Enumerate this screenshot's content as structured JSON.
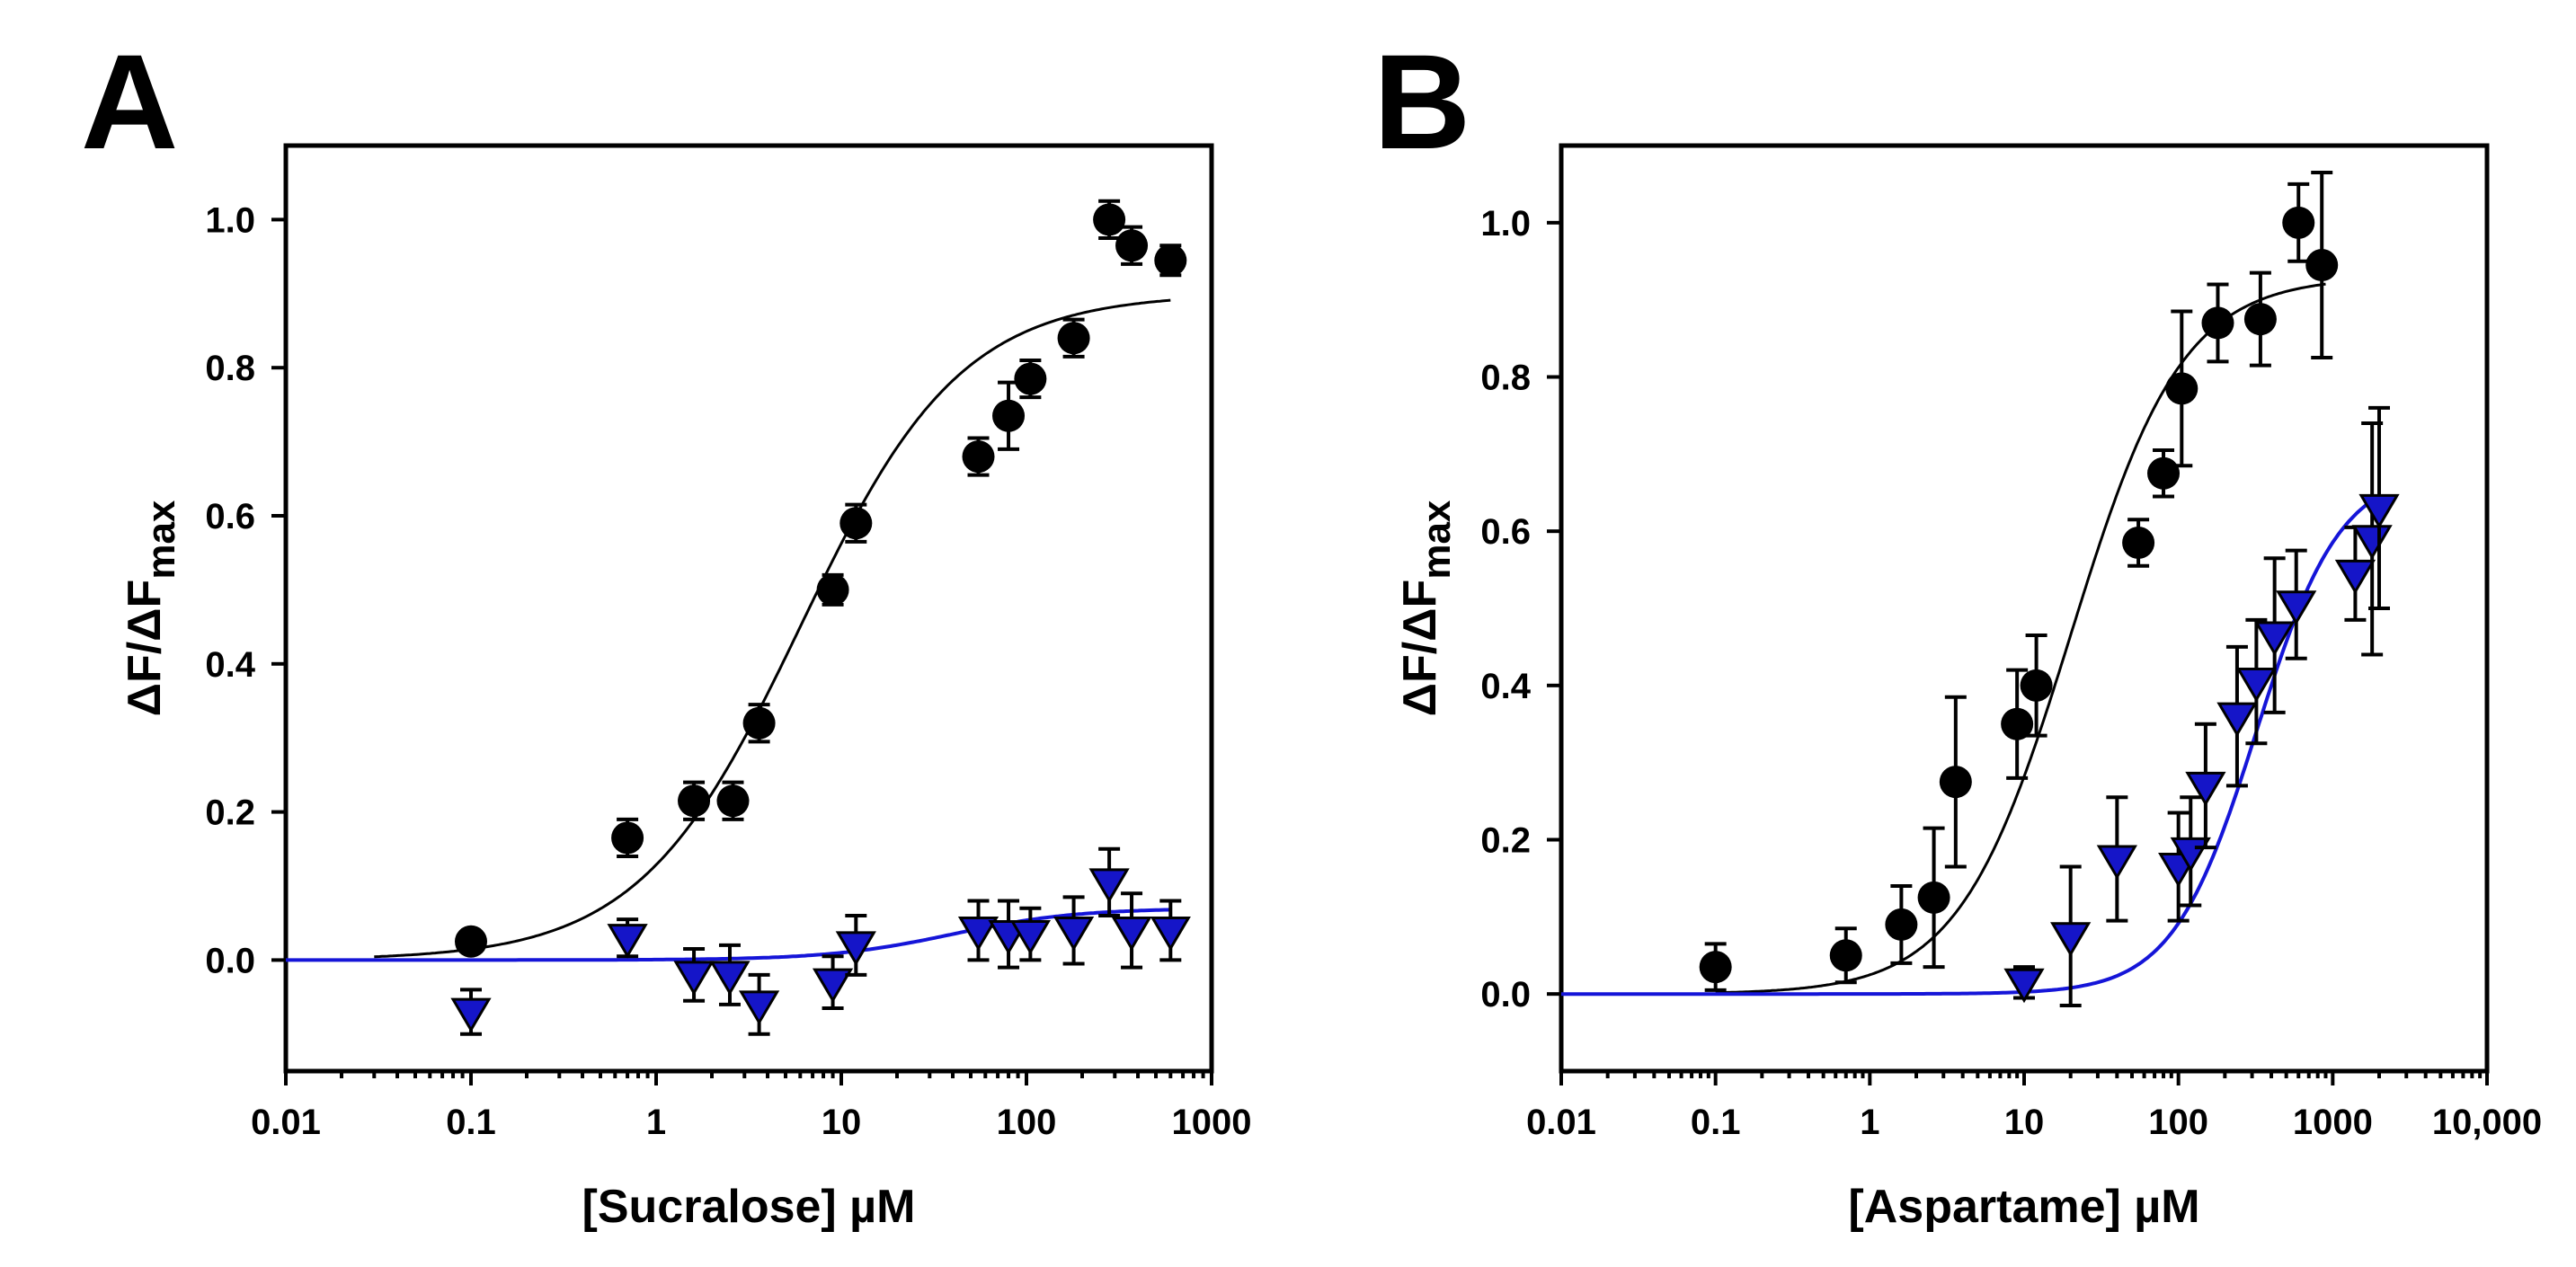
{
  "chart_data": [
    {
      "panel": "A",
      "type": "scatter",
      "title": "",
      "xlabel": "[Sucralose] µM",
      "ylabel_main": "ΔF/ΔF",
      "ylabel_sub": "max",
      "xscale": "log",
      "xlim": [
        0.01,
        1000
      ],
      "ylim": [
        -0.15,
        1.1
      ],
      "x_ticks": [
        0.01,
        0.1,
        1,
        10,
        100,
        1000
      ],
      "x_tick_labels": [
        "0.01",
        "0.1",
        "1",
        "10",
        "100",
        "1000"
      ],
      "y_ticks": [
        0,
        0.2,
        0.4,
        0.6,
        0.8,
        1.0
      ],
      "y_tick_labels": [
        "0.0",
        "0.2",
        "0.4",
        "0.6",
        "0.8",
        "1.0"
      ],
      "series": [
        {
          "name": "circles",
          "marker": "circle",
          "color": "#000000",
          "x": [
            0.1,
            0.7,
            1.6,
            2.6,
            3.6,
            9,
            12,
            55,
            80,
            105,
            180,
            280,
            370,
            600
          ],
          "y": [
            0.025,
            0.165,
            0.215,
            0.215,
            0.32,
            0.5,
            0.59,
            0.68,
            0.735,
            0.785,
            0.84,
            1.0,
            0.965,
            0.945
          ],
          "err": [
            0.01,
            0.025,
            0.025,
            0.025,
            0.025,
            0.02,
            0.025,
            0.025,
            0.045,
            0.025,
            0.025,
            0.025,
            0.025,
            0.02
          ],
          "fit": {
            "bottom": 0.0,
            "top": 0.9,
            "ec50": 6.0,
            "hill": 1.0,
            "xrange": [
              0.03,
              600
            ],
            "color": "#000000"
          }
        },
        {
          "name": "triangles",
          "marker": "triangle-down",
          "color": "#1515c8",
          "x": [
            0.1,
            0.7,
            1.6,
            2.5,
            3.6,
            9,
            12,
            55,
            80,
            105,
            180,
            280,
            370,
            600
          ],
          "y": [
            -0.07,
            0.03,
            -0.02,
            -0.02,
            -0.06,
            -0.03,
            0.02,
            0.04,
            0.035,
            0.035,
            0.04,
            0.105,
            0.04,
            0.04
          ],
          "err": [
            0.03,
            0.025,
            0.035,
            0.04,
            0.04,
            0.035,
            0.04,
            0.04,
            0.045,
            0.035,
            0.045,
            0.045,
            0.05,
            0.04
          ],
          "fit": {
            "bottom": 0.0,
            "top": 0.07,
            "ec50": 40,
            "hill": 1.3,
            "xrange": [
              0.01,
              600
            ],
            "color": "#1515d8"
          }
        }
      ]
    },
    {
      "panel": "B",
      "type": "scatter",
      "title": "",
      "xlabel": "[Aspartame] µM",
      "ylabel_main": "ΔF/ΔF",
      "ylabel_sub": "max",
      "xscale": "log",
      "xlim": [
        0.01,
        10000
      ],
      "ylim": [
        -0.1,
        1.1
      ],
      "x_ticks": [
        0.01,
        0.1,
        1,
        10,
        100,
        1000,
        10000
      ],
      "x_tick_labels": [
        "0.01",
        "0.1",
        "1",
        "10",
        "100",
        "1000",
        "10,000"
      ],
      "y_ticks": [
        0,
        0.2,
        0.4,
        0.6,
        0.8,
        1.0
      ],
      "y_tick_labels": [
        "0.0",
        "0.2",
        "0.4",
        "0.6",
        "0.8",
        "1.0"
      ],
      "series": [
        {
          "name": "circles",
          "marker": "circle",
          "color": "#000000",
          "x": [
            0.1,
            0.7,
            1.6,
            2.6,
            3.6,
            9,
            12,
            55,
            80,
            105,
            180,
            340,
            600,
            850
          ],
          "y": [
            0.035,
            0.05,
            0.09,
            0.125,
            0.275,
            0.35,
            0.4,
            0.585,
            0.675,
            0.785,
            0.87,
            0.875,
            1.0,
            0.945
          ],
          "err": [
            0.03,
            0.035,
            0.05,
            0.09,
            0.11,
            0.07,
            0.065,
            0.03,
            0.03,
            0.1,
            0.05,
            0.06,
            0.05,
            0.12
          ],
          "fit": {
            "bottom": 0.0,
            "top": 0.93,
            "ec50": 20,
            "hill": 1.2,
            "xrange": [
              0.1,
              900
            ],
            "color": "#000000"
          }
        },
        {
          "name": "triangles",
          "marker": "triangle-down",
          "color": "#1515c8",
          "x": [
            10,
            20,
            40,
            100,
            120,
            150,
            240,
            320,
            420,
            580,
            1400,
            1800,
            2000
          ],
          "y": [
            0.015,
            0.075,
            0.175,
            0.165,
            0.185,
            0.27,
            0.36,
            0.405,
            0.465,
            0.505,
            0.545,
            0.59,
            0.63
          ],
          "err": [
            0.02,
            0.09,
            0.08,
            0.07,
            0.07,
            0.08,
            0.09,
            0.08,
            0.1,
            0.07,
            0.06,
            0.15,
            0.13
          ],
          "fit": {
            "bottom": 0.0,
            "top": 0.68,
            "ec50": 320,
            "hill": 1.6,
            "xrange": [
              0.01,
              2000
            ],
            "color": "#1515d8"
          }
        }
      ]
    }
  ],
  "panels": [
    {
      "label": "A"
    },
    {
      "label": "B"
    }
  ]
}
